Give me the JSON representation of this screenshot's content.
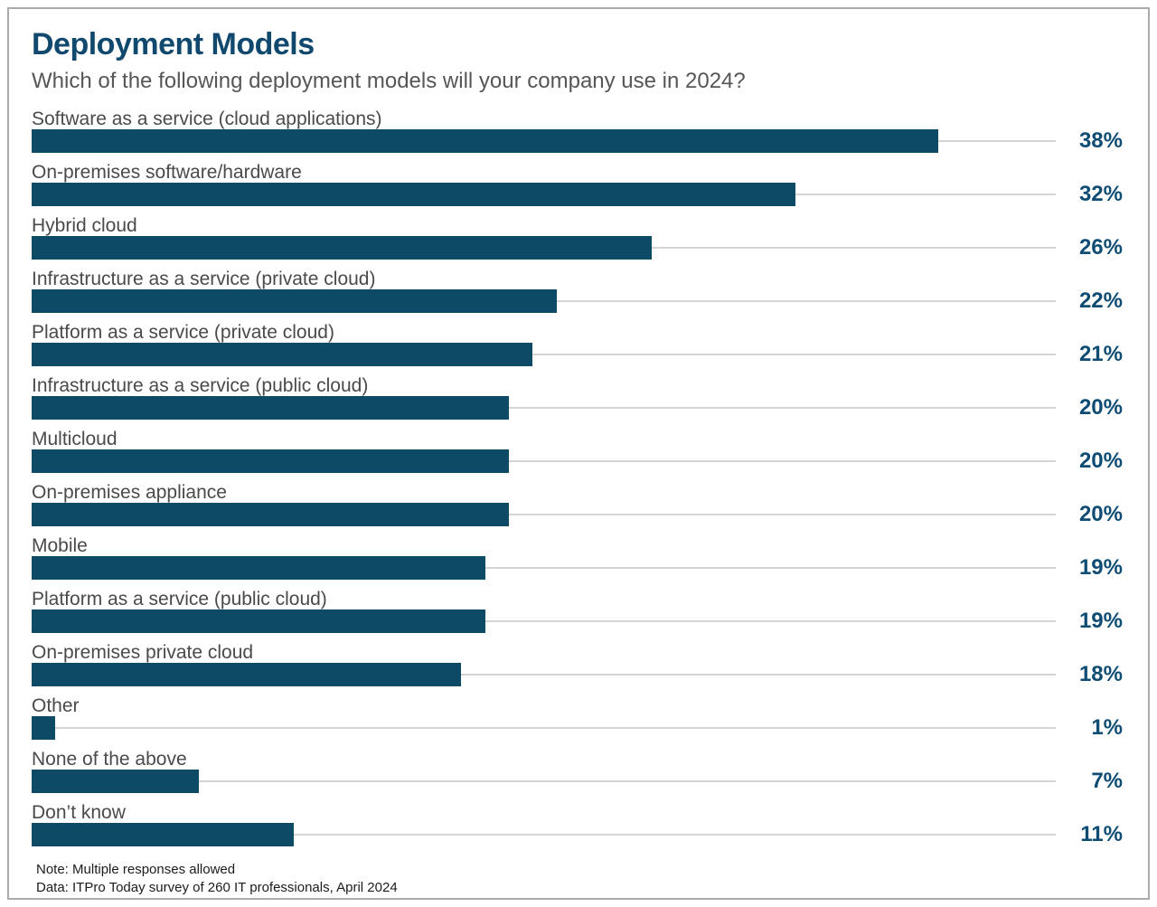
{
  "header": {
    "title": "Deployment Models",
    "subtitle": "Which of the following deployment models will your company use in 2024?"
  },
  "chart_data": {
    "type": "bar",
    "orientation": "horizontal",
    "unit": "%",
    "title": "Deployment Models",
    "subtitle": "Which of the following deployment models will your company use in 2024?",
    "categories": [
      "Software as a service (cloud applications)",
      "On-premises software/hardware",
      "Hybrid cloud",
      "Infrastructure as a service (private cloud)",
      "Platform as a service (private cloud)",
      "Infrastructure as a service (public cloud)",
      "Multicloud",
      "On-premises appliance",
      "Mobile",
      "Platform as a service (public cloud)",
      "On-premises private cloud",
      "Other",
      "None of the above",
      "Don’t know"
    ],
    "values": [
      38,
      32,
      26,
      22,
      21,
      20,
      20,
      20,
      19,
      19,
      18,
      1,
      7,
      11
    ],
    "value_labels": [
      "38%",
      "32%",
      "26%",
      "22%",
      "21%",
      "20%",
      "20%",
      "20%",
      "19%",
      "19%",
      "18%",
      "1%",
      "7%",
      "11%"
    ],
    "xlim": [
      0,
      43
    ],
    "grid": false,
    "legend": false,
    "value_label_position": "right-edge"
  },
  "footer": {
    "note": "Note: Multiple responses allowed",
    "source": "Data: ITPro Today survey of 260 IT professionals, April 2024"
  },
  "colors": {
    "bar": "#0d4a66",
    "title": "#11486e",
    "value_text": "#0e4c73",
    "category_label": "#4a4a4c",
    "subtitle": "#565656",
    "connector_line": "#d4d4d4",
    "frame_border": "#ababab",
    "background": "#ffffff"
  }
}
